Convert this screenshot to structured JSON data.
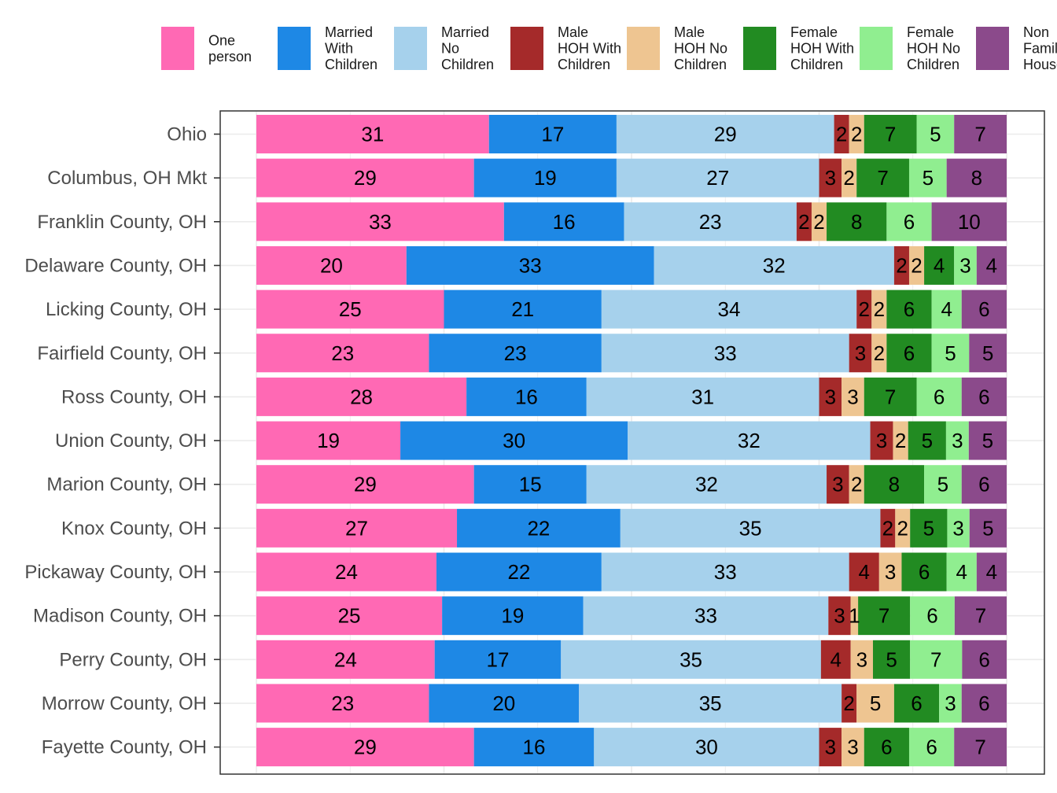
{
  "chart_data": {
    "type": "bar",
    "orientation": "horizontal",
    "stacked": "percent",
    "grid": true,
    "legend_position": "top",
    "categories": [
      "Ohio",
      "Columbus, OH Mkt",
      "Franklin County, OH",
      "Delaware County, OH",
      "Licking County, OH",
      "Fairfield County, OH",
      "Ross County, OH",
      "Union County, OH",
      "Marion County, OH",
      "Knox County, OH",
      "Pickaway County, OH",
      "Madison County, OH",
      "Perry County, OH",
      "Morrow County, OH",
      "Fayette County, OH"
    ],
    "series": [
      {
        "name": "One person",
        "legend_lines": [
          "One",
          "person"
        ],
        "color": "#FF69B4",
        "values": [
          31,
          29,
          33,
          20,
          25,
          23,
          28,
          19,
          29,
          27,
          24,
          25,
          24,
          23,
          29
        ]
      },
      {
        "name": "Married With Children",
        "legend_lines": [
          "Married",
          "With",
          "Children"
        ],
        "color": "#1E88E5",
        "values": [
          17,
          19,
          16,
          33,
          21,
          23,
          16,
          30,
          15,
          22,
          22,
          19,
          17,
          20,
          16
        ]
      },
      {
        "name": "Married No Children",
        "legend_lines": [
          "Married",
          "No",
          "Children"
        ],
        "color": "#A6D1EC",
        "values": [
          29,
          27,
          23,
          32,
          34,
          33,
          31,
          32,
          32,
          35,
          33,
          33,
          35,
          35,
          30
        ]
      },
      {
        "name": "Male HOH With Children",
        "legend_lines": [
          "Male",
          "HOH With",
          "Children"
        ],
        "color": "#A52A2A",
        "values": [
          2,
          3,
          2,
          2,
          2,
          3,
          3,
          3,
          3,
          2,
          4,
          3,
          4,
          2,
          3
        ]
      },
      {
        "name": "Male HOH No Children",
        "legend_lines": [
          "Male",
          "HOH No",
          "Children"
        ],
        "color": "#EEC591",
        "values": [
          2,
          2,
          2,
          2,
          2,
          2,
          3,
          2,
          2,
          2,
          3,
          1,
          3,
          5,
          3
        ]
      },
      {
        "name": "Female HOH With Children",
        "legend_lines": [
          "Female",
          "HOH With",
          "Children"
        ],
        "color": "#228B22",
        "values": [
          7,
          7,
          8,
          4,
          6,
          6,
          7,
          5,
          8,
          5,
          6,
          7,
          5,
          6,
          6
        ]
      },
      {
        "name": "Female HOH No Children",
        "legend_lines": [
          "Female",
          "HOH No",
          "Children"
        ],
        "color": "#90EE90",
        "values": [
          5,
          5,
          6,
          3,
          4,
          5,
          6,
          3,
          5,
          3,
          4,
          6,
          7,
          3,
          6
        ]
      },
      {
        "name": "Non Family Households",
        "legend_lines": [
          "Non",
          "Family",
          "Households"
        ],
        "color": "#8B4A8B",
        "values": [
          7,
          8,
          10,
          4,
          6,
          5,
          6,
          5,
          6,
          5,
          4,
          7,
          6,
          6,
          7
        ]
      }
    ]
  }
}
